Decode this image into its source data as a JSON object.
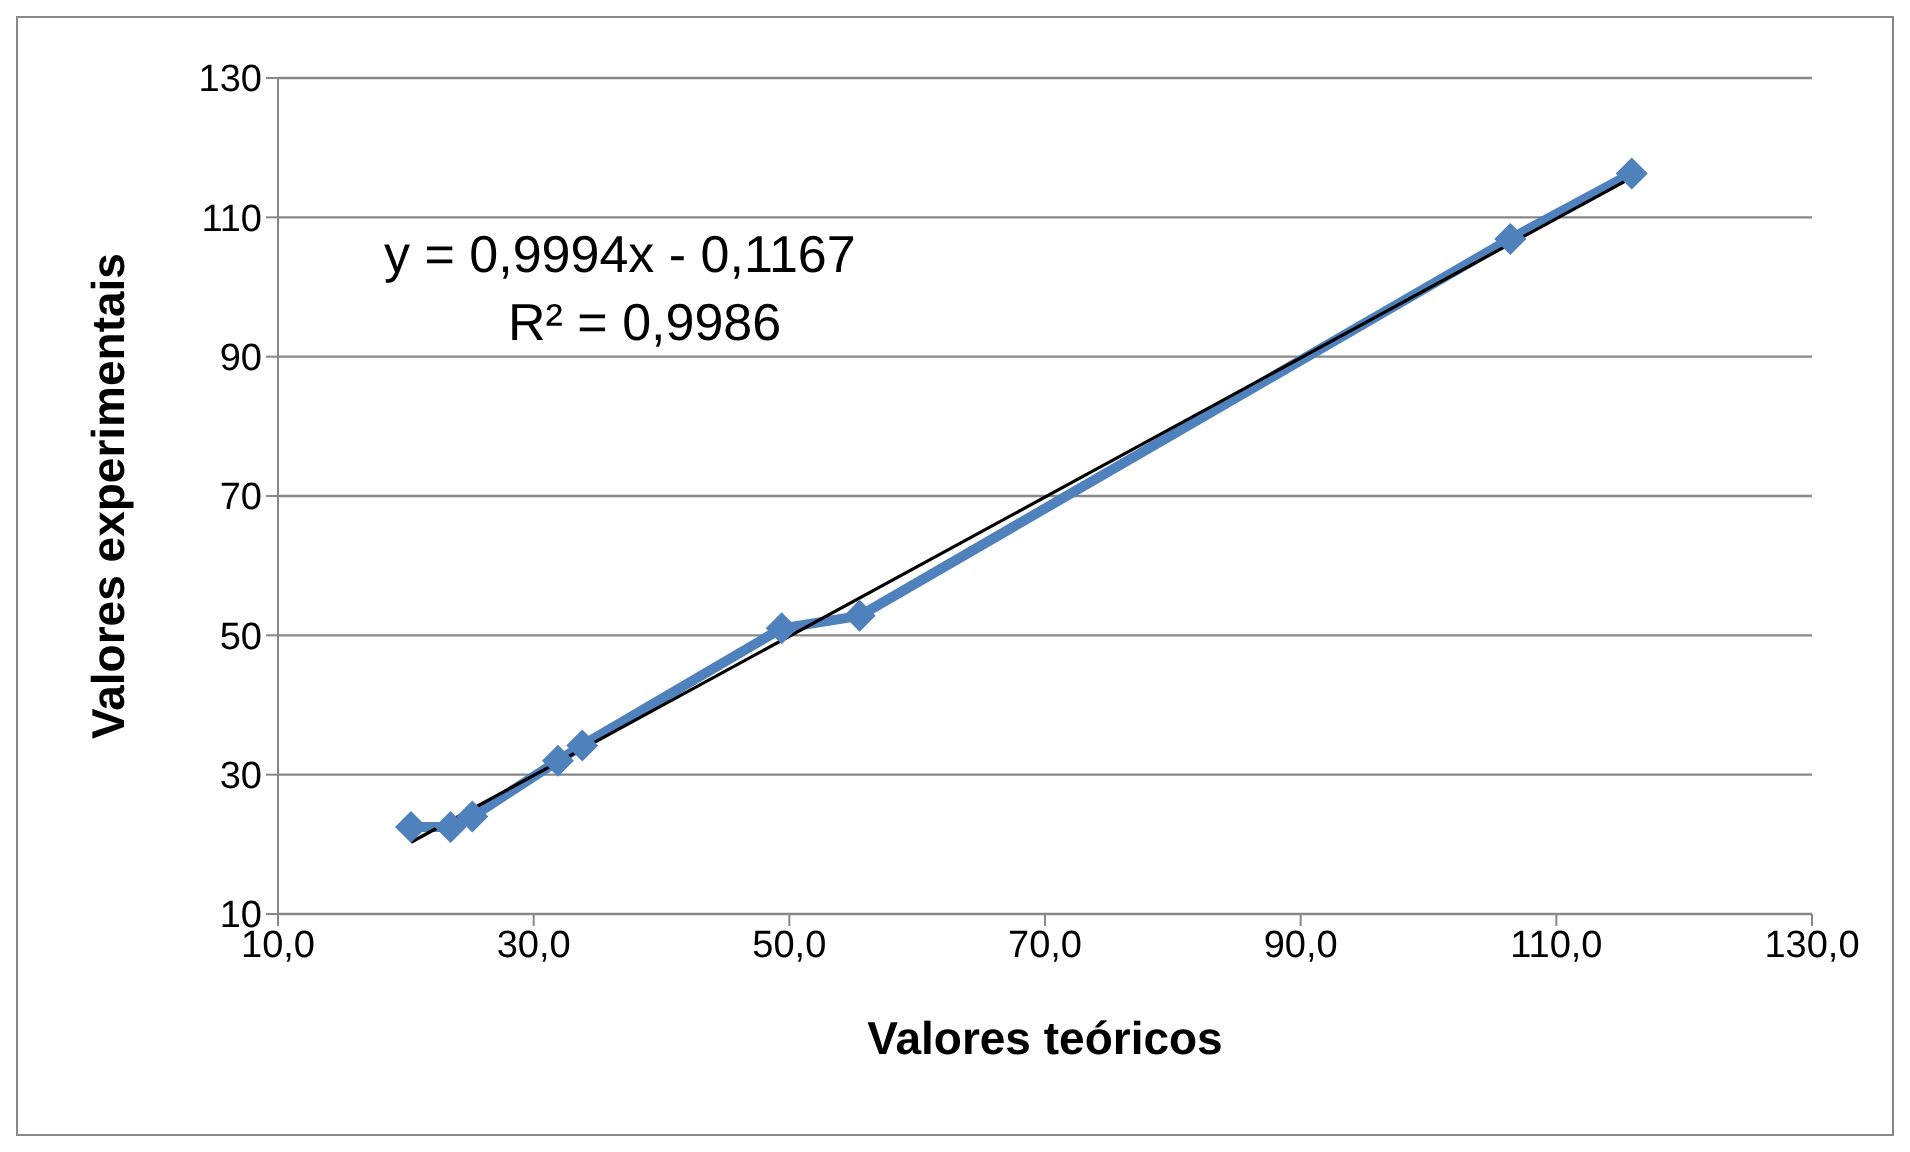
{
  "chart_data": {
    "type": "line",
    "xlabel": "Valores  teóricos",
    "ylabel": "Valores  experimentais",
    "xlim": [
      10,
      130
    ],
    "xticks": [
      {
        "value": 10,
        "label": "10,0"
      },
      {
        "value": 30,
        "label": "30,0"
      },
      {
        "value": 50,
        "label": "50,0"
      },
      {
        "value": 70,
        "label": "70,0"
      },
      {
        "value": 90,
        "label": "90,0"
      },
      {
        "value": 110,
        "label": "110,0"
      },
      {
        "value": 130,
        "label": "130,0"
      }
    ],
    "ylim": [
      10,
      130
    ],
    "yticks": [
      10,
      30,
      50,
      70,
      90,
      110,
      130
    ],
    "grid": "y",
    "annotations": [
      "y = 0,9994x - 0,1167",
      "R² = 0,9986"
    ],
    "series": [
      {
        "color": "#4f81bd",
        "marker": "diamond",
        "line_style": "solid",
        "x": [
          20.4,
          23.5,
          25.2,
          31.9,
          33.8,
          49.4,
          55.5,
          106.4,
          115.9
        ],
        "values": [
          22.5,
          22.5,
          24.0,
          32.0,
          34.2,
          51.0,
          52.8,
          106.9,
          116.3
        ]
      },
      {
        "color": "#000000",
        "marker": "none",
        "line_style": "solid",
        "x": [
          20.4,
          115.9
        ],
        "values": [
          20.3,
          115.7
        ]
      }
    ]
  }
}
